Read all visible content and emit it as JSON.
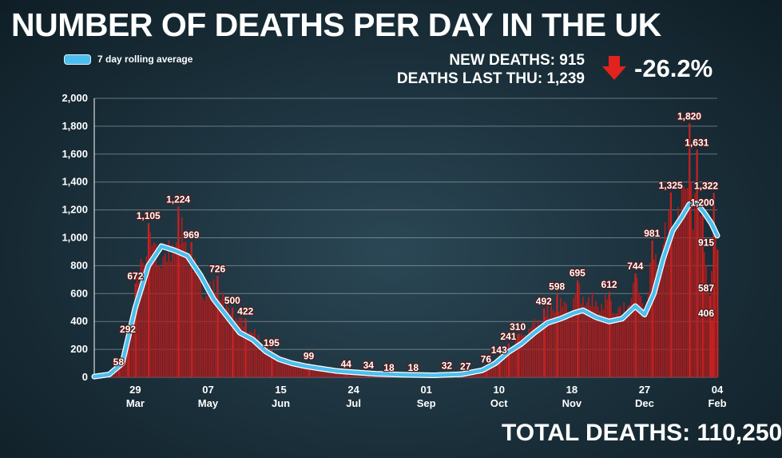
{
  "title": "NUMBER OF DEATHS PER DAY IN THE UK",
  "legend": {
    "label": "7 day rolling average"
  },
  "stats": {
    "new_deaths": "NEW DEATHS: 915",
    "deaths_last_thu": "DEATHS LAST THU: 1,239",
    "change": "-26.2%"
  },
  "total": "TOTAL DEATHS: 110,250",
  "colors": {
    "bars": "#b31b1b",
    "line": "#4dbfee",
    "line_outline": "#ffffff",
    "arrow": "#e0231d"
  },
  "chart_data": {
    "type": "bar",
    "series_names": [
      "7 day rolling average"
    ],
    "ylim": [
      0,
      2000
    ],
    "y_ticks": [
      "0",
      "200",
      "400",
      "600",
      "800",
      "1,000",
      "1,200",
      "1,400",
      "1,600",
      "1,800",
      "2,000"
    ],
    "x_start": "2020-03-07",
    "x_end": "2021-02-04",
    "x_ticks": [
      {
        "day": "29",
        "month": "Mar",
        "date": "2020-03-29"
      },
      {
        "day": "07",
        "month": "May",
        "date": "2020-05-07"
      },
      {
        "day": "15",
        "month": "Jun",
        "date": "2020-06-15"
      },
      {
        "day": "24",
        "month": "Jul",
        "date": "2020-07-24"
      },
      {
        "day": "01",
        "month": "Sep",
        "date": "2020-09-01"
      },
      {
        "day": "10",
        "month": "Oct",
        "date": "2020-10-10"
      },
      {
        "day": "18",
        "month": "Nov",
        "date": "2020-11-18"
      },
      {
        "day": "27",
        "month": "Dec",
        "date": "2020-12-27"
      },
      {
        "day": "04",
        "month": "Feb",
        "date": "2021-02-04"
      }
    ],
    "daily_anchors": [
      [
        "2020-03-07",
        2
      ],
      [
        "2020-03-15",
        15
      ],
      [
        "2020-03-20",
        58
      ],
      [
        "2020-03-25",
        292
      ],
      [
        "2020-03-29",
        672
      ],
      [
        "2020-04-01",
        900
      ],
      [
        "2020-04-05",
        1105
      ],
      [
        "2020-04-10",
        1000
      ],
      [
        "2020-04-15",
        950
      ],
      [
        "2020-04-21",
        1224
      ],
      [
        "2020-04-28",
        969
      ],
      [
        "2020-05-05",
        700
      ],
      [
        "2020-05-12",
        726
      ],
      [
        "2020-05-20",
        500
      ],
      [
        "2020-05-27",
        422
      ],
      [
        "2020-06-03",
        320
      ],
      [
        "2020-06-10",
        195
      ],
      [
        "2020-06-20",
        130
      ],
      [
        "2020-06-30",
        99
      ],
      [
        "2020-07-10",
        60
      ],
      [
        "2020-07-20",
        44
      ],
      [
        "2020-08-01",
        34
      ],
      [
        "2020-08-12",
        18
      ],
      [
        "2020-08-25",
        18
      ],
      [
        "2020-09-05",
        20
      ],
      [
        "2020-09-12",
        32
      ],
      [
        "2020-09-22",
        27
      ],
      [
        "2020-10-03",
        76
      ],
      [
        "2020-10-10",
        143
      ],
      [
        "2020-10-15",
        241
      ],
      [
        "2020-10-20",
        310
      ],
      [
        "2020-10-28",
        420
      ],
      [
        "2020-11-03",
        492
      ],
      [
        "2020-11-10",
        598
      ],
      [
        "2020-11-17",
        560
      ],
      [
        "2020-11-21",
        695
      ],
      [
        "2020-11-30",
        600
      ],
      [
        "2020-12-08",
        612
      ],
      [
        "2020-12-15",
        520
      ],
      [
        "2020-12-22",
        744
      ],
      [
        "2020-12-28",
        600
      ],
      [
        "2020-12-31",
        981
      ],
      [
        "2021-01-05",
        1000
      ],
      [
        "2021-01-10",
        1325
      ],
      [
        "2021-01-14",
        1250
      ],
      [
        "2021-01-20",
        1820
      ],
      [
        "2021-01-22",
        1200
      ],
      [
        "2021-01-24",
        1631
      ],
      [
        "2021-01-27",
        1200
      ],
      [
        "2021-01-31",
        587
      ],
      [
        "2021-02-02",
        1322
      ],
      [
        "2021-02-03",
        1322
      ],
      [
        "2021-02-04",
        915
      ]
    ],
    "rolling_average_anchors": [
      [
        "2020-03-07",
        5
      ],
      [
        "2020-03-15",
        20
      ],
      [
        "2020-03-22",
        100
      ],
      [
        "2020-03-29",
        500
      ],
      [
        "2020-04-05",
        800
      ],
      [
        "2020-04-12",
        940
      ],
      [
        "2020-04-19",
        910
      ],
      [
        "2020-04-26",
        870
      ],
      [
        "2020-05-03",
        730
      ],
      [
        "2020-05-10",
        560
      ],
      [
        "2020-05-17",
        440
      ],
      [
        "2020-05-24",
        320
      ],
      [
        "2020-05-31",
        270
      ],
      [
        "2020-06-07",
        185
      ],
      [
        "2020-06-14",
        130
      ],
      [
        "2020-06-21",
        100
      ],
      [
        "2020-06-28",
        80
      ],
      [
        "2020-07-05",
        65
      ],
      [
        "2020-07-15",
        45
      ],
      [
        "2020-07-25",
        35
      ],
      [
        "2020-08-05",
        25
      ],
      [
        "2020-08-20",
        18
      ],
      [
        "2020-09-05",
        14
      ],
      [
        "2020-09-20",
        22
      ],
      [
        "2020-10-01",
        50
      ],
      [
        "2020-10-08",
        100
      ],
      [
        "2020-10-15",
        180
      ],
      [
        "2020-10-22",
        240
      ],
      [
        "2020-10-29",
        320
      ],
      [
        "2020-11-05",
        390
      ],
      [
        "2020-11-12",
        420
      ],
      [
        "2020-11-19",
        460
      ],
      [
        "2020-11-24",
        480
      ],
      [
        "2020-12-01",
        430
      ],
      [
        "2020-12-08",
        400
      ],
      [
        "2020-12-15",
        420
      ],
      [
        "2020-12-22",
        510
      ],
      [
        "2020-12-27",
        450
      ],
      [
        "2021-01-01",
        600
      ],
      [
        "2021-01-06",
        850
      ],
      [
        "2021-01-11",
        1050
      ],
      [
        "2021-01-16",
        1150
      ],
      [
        "2021-01-20",
        1240
      ],
      [
        "2021-01-24",
        1245
      ],
      [
        "2021-01-28",
        1180
      ],
      [
        "2021-02-01",
        1100
      ],
      [
        "2021-02-04",
        1015
      ]
    ],
    "data_labels": [
      {
        "text": "58",
        "date": "2020-03-20",
        "value": 58
      },
      {
        "text": "292",
        "date": "2020-03-25",
        "value": 292
      },
      {
        "text": "672",
        "date": "2020-03-29",
        "value": 672
      },
      {
        "text": "1,105",
        "date": "2020-04-05",
        "value": 1105
      },
      {
        "text": "1,224",
        "date": "2020-04-21",
        "value": 1224
      },
      {
        "text": "969",
        "date": "2020-04-28",
        "value": 969
      },
      {
        "text": "726",
        "date": "2020-05-12",
        "value": 726
      },
      {
        "text": "500",
        "date": "2020-05-20",
        "value": 500
      },
      {
        "text": "422",
        "date": "2020-05-27",
        "value": 422
      },
      {
        "text": "195",
        "date": "2020-06-10",
        "value": 195
      },
      {
        "text": "99",
        "date": "2020-06-30",
        "value": 99
      },
      {
        "text": "44",
        "date": "2020-07-20",
        "value": 44
      },
      {
        "text": "34",
        "date": "2020-08-01",
        "value": 34
      },
      {
        "text": "18",
        "date": "2020-08-12",
        "value": 18
      },
      {
        "text": "18",
        "date": "2020-08-25",
        "value": 18
      },
      {
        "text": "32",
        "date": "2020-09-12",
        "value": 32
      },
      {
        "text": "27",
        "date": "2020-09-22",
        "value": 27
      },
      {
        "text": "76",
        "date": "2020-10-03",
        "value": 76
      },
      {
        "text": "143",
        "date": "2020-10-10",
        "value": 143
      },
      {
        "text": "241",
        "date": "2020-10-15",
        "value": 241
      },
      {
        "text": "310",
        "date": "2020-10-20",
        "value": 310
      },
      {
        "text": "492",
        "date": "2020-11-03",
        "value": 492
      },
      {
        "text": "598",
        "date": "2020-11-10",
        "value": 598
      },
      {
        "text": "695",
        "date": "2020-11-21",
        "value": 695
      },
      {
        "text": "612",
        "date": "2020-12-08",
        "value": 612
      },
      {
        "text": "744",
        "date": "2020-12-22",
        "value": 744
      },
      {
        "text": "981",
        "date": "2020-12-31",
        "value": 981
      },
      {
        "text": "1,325",
        "date": "2021-01-10",
        "value": 1325
      },
      {
        "text": "1,820",
        "date": "2021-01-20",
        "value": 1820
      },
      {
        "text": "1,631",
        "date": "2021-01-24",
        "value": 1631
      },
      {
        "text": "1,200",
        "date": "2021-01-27",
        "value": 1200
      },
      {
        "text": "1,322",
        "date": "2021-02-02",
        "value": 1322
      },
      {
        "text": "915",
        "date": "2021-02-04",
        "value": 915
      },
      {
        "text": "587",
        "date": "2021-01-31",
        "value": 587
      },
      {
        "text": "406",
        "date": "2021-02-01",
        "value": 406
      }
    ]
  }
}
